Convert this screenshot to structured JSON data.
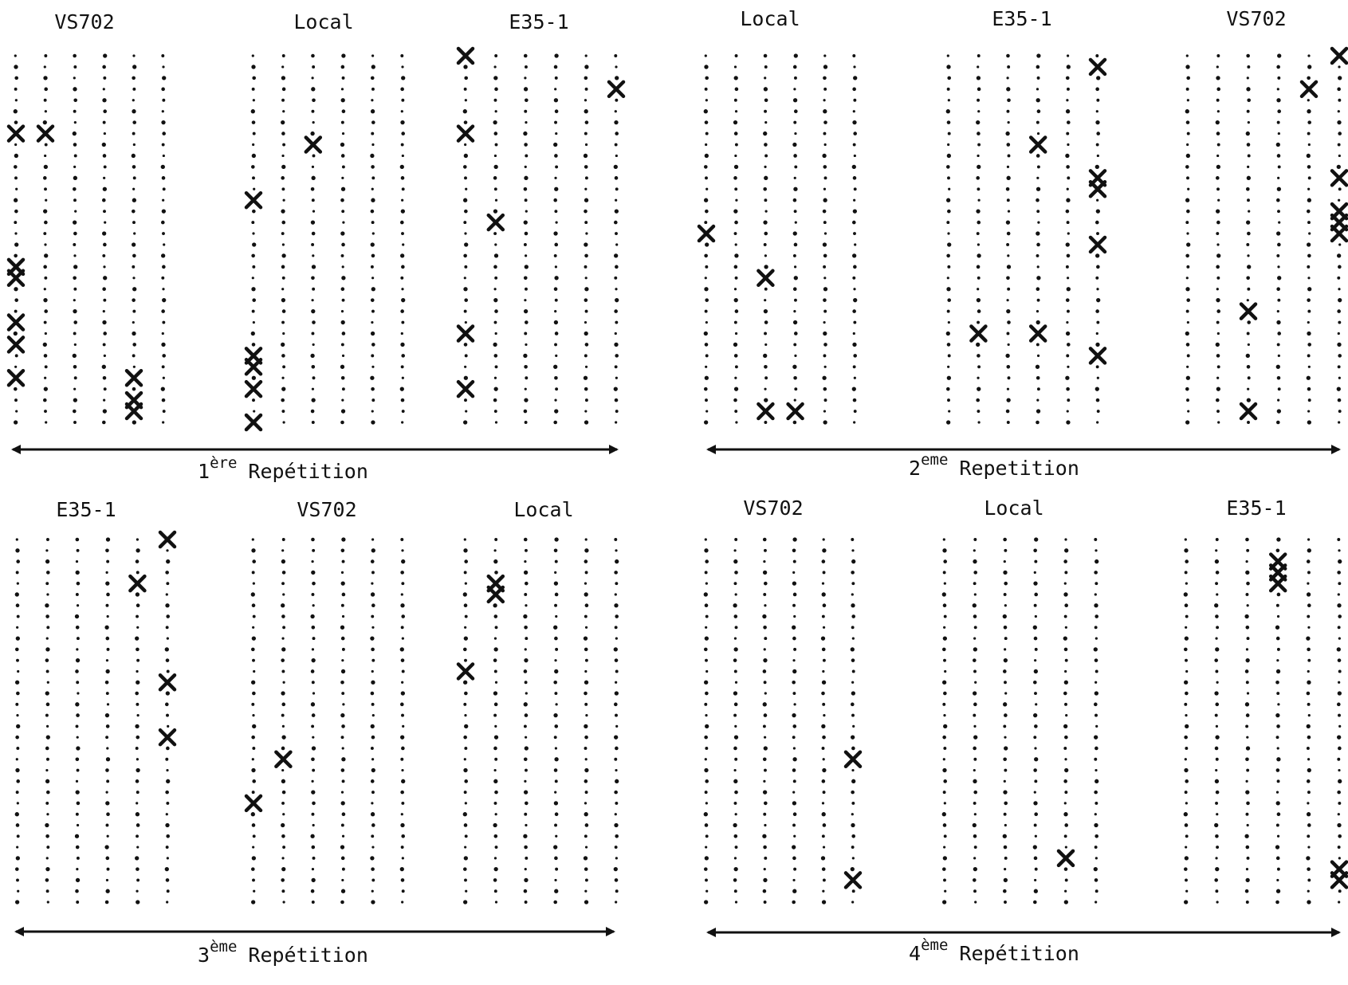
{
  "figure": {
    "ink_color": "#111111",
    "paper_color": "#ffffff",
    "plant_marker": "dot",
    "missing_marker": "x-mark",
    "repetitions": [
      {
        "ordinal": "1",
        "suffix": "ère",
        "word": "Repétition",
        "plots": [
          {
            "label": "VS702",
            "rows": 6,
            "marked": [
              [
                0,
                7
              ],
              [
                0,
                19
              ],
              [
                0,
                20
              ],
              [
                0,
                24
              ],
              [
                0,
                26
              ],
              [
                0,
                29
              ],
              [
                1,
                7
              ],
              [
                4,
                29
              ],
              [
                4,
                31
              ],
              [
                4,
                32
              ]
            ]
          },
          {
            "label": "Local",
            "rows": 6,
            "marked": [
              [
                0,
                13
              ],
              [
                0,
                27
              ],
              [
                0,
                28
              ],
              [
                0,
                30
              ],
              [
                0,
                33
              ],
              [
                2,
                8
              ]
            ]
          },
          {
            "label": "E35-1",
            "rows": 6,
            "marked": [
              [
                0,
                0
              ],
              [
                0,
                7
              ],
              [
                0,
                25
              ],
              [
                0,
                30
              ],
              [
                1,
                15
              ],
              [
                5,
                3
              ]
            ]
          }
        ]
      },
      {
        "ordinal": "2",
        "suffix": "eme",
        "word": "Repetition",
        "plots": [
          {
            "label": "Local",
            "rows": 6,
            "marked": [
              [
                0,
                16
              ],
              [
                2,
                20
              ],
              [
                2,
                32
              ],
              [
                3,
                32
              ]
            ]
          },
          {
            "label": "E35-1",
            "rows": 6,
            "marked": [
              [
                1,
                25
              ],
              [
                3,
                8
              ],
              [
                3,
                25
              ],
              [
                5,
                1
              ],
              [
                5,
                11
              ],
              [
                5,
                12
              ],
              [
                5,
                17
              ],
              [
                5,
                27
              ]
            ]
          },
          {
            "label": "VS702",
            "rows": 6,
            "marked": [
              [
                2,
                23
              ],
              [
                2,
                32
              ],
              [
                4,
                3
              ],
              [
                5,
                0
              ],
              [
                5,
                11
              ],
              [
                5,
                14
              ],
              [
                5,
                15
              ],
              [
                5,
                16
              ]
            ]
          }
        ]
      },
      {
        "ordinal": "3",
        "suffix": "ème",
        "word": "Repétition",
        "plots": [
          {
            "label": "E35-1",
            "rows": 6,
            "marked": [
              [
                4,
                4
              ],
              [
                5,
                0
              ],
              [
                5,
                13
              ],
              [
                5,
                18
              ]
            ]
          },
          {
            "label": "VS702",
            "rows": 6,
            "marked": [
              [
                0,
                24
              ],
              [
                1,
                20
              ]
            ]
          },
          {
            "label": "Local",
            "rows": 6,
            "marked": [
              [
                1,
                4
              ],
              [
                1,
                5
              ],
              [
                0,
                12
              ]
            ]
          }
        ]
      },
      {
        "ordinal": "4",
        "suffix": "ème",
        "word": "Repétition",
        "plots": [
          {
            "label": "VS702",
            "rows": 6,
            "marked": [
              [
                5,
                20
              ],
              [
                5,
                31
              ]
            ]
          },
          {
            "label": "Local",
            "rows": 6,
            "marked": [
              [
                4,
                29
              ]
            ]
          },
          {
            "label": "E35-1",
            "rows": 6,
            "marked": [
              [
                3,
                2
              ],
              [
                3,
                3
              ],
              [
                3,
                4
              ],
              [
                5,
                30
              ],
              [
                5,
                31
              ]
            ]
          }
        ]
      }
    ]
  }
}
